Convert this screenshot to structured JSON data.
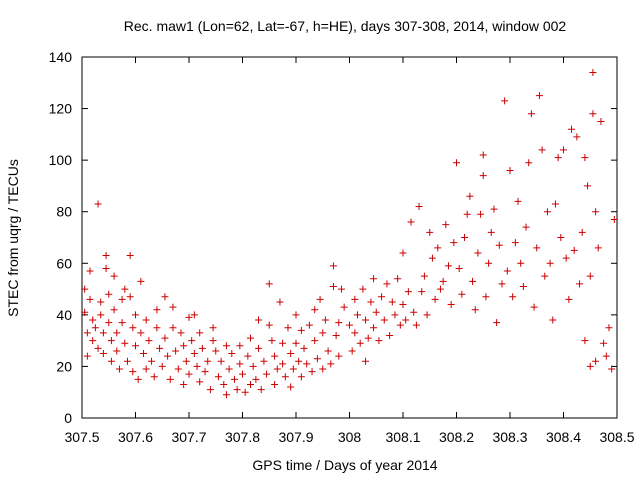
{
  "chart_data": {
    "type": "scatter",
    "title": "Rec. maw1 (Lon=62, Lat=-67, h=HE), days 307-308, 2014, window 002",
    "xlabel": "GPS time / Days of year 2014",
    "ylabel": "STEC from uqrg / TECUs",
    "xlim": [
      307.5,
      308.5
    ],
    "ylim": [
      0,
      140
    ],
    "xticks": [
      "307.5",
      "307.6",
      "307.7",
      "307.8",
      "307.9",
      "308",
      "308.1",
      "308.2",
      "308.3",
      "308.4",
      "308.5"
    ],
    "yticks": [
      "0",
      "20",
      "40",
      "60",
      "80",
      "100",
      "120",
      "140"
    ],
    "grid": false,
    "marker": "+",
    "color": "#cc0000",
    "series": [
      {
        "name": "STEC",
        "points": [
          [
            307.505,
            50
          ],
          [
            307.505,
            41
          ],
          [
            307.51,
            33
          ],
          [
            307.51,
            24
          ],
          [
            307.515,
            57
          ],
          [
            307.515,
            46
          ],
          [
            307.52,
            38
          ],
          [
            307.52,
            30
          ],
          [
            307.525,
            35
          ],
          [
            307.53,
            27
          ],
          [
            307.53,
            83
          ],
          [
            307.535,
            45
          ],
          [
            307.535,
            40
          ],
          [
            307.54,
            33
          ],
          [
            307.54,
            25
          ],
          [
            307.545,
            58
          ],
          [
            307.545,
            63
          ],
          [
            307.55,
            48
          ],
          [
            307.55,
            37
          ],
          [
            307.555,
            30
          ],
          [
            307.555,
            22
          ],
          [
            307.56,
            55
          ],
          [
            307.56,
            42
          ],
          [
            307.565,
            33
          ],
          [
            307.565,
            26
          ],
          [
            307.57,
            19
          ],
          [
            307.575,
            46
          ],
          [
            307.575,
            37
          ],
          [
            307.58,
            50
          ],
          [
            307.58,
            29
          ],
          [
            307.585,
            22
          ],
          [
            307.59,
            63
          ],
          [
            307.59,
            47
          ],
          [
            307.595,
            35
          ],
          [
            307.595,
            18
          ],
          [
            307.6,
            40
          ],
          [
            307.6,
            28
          ],
          [
            307.605,
            15
          ],
          [
            307.61,
            53
          ],
          [
            307.61,
            33
          ],
          [
            307.615,
            25
          ],
          [
            307.62,
            38
          ],
          [
            307.62,
            19
          ],
          [
            307.625,
            30
          ],
          [
            307.63,
            22
          ],
          [
            307.635,
            16
          ],
          [
            307.64,
            42
          ],
          [
            307.64,
            35
          ],
          [
            307.645,
            27
          ],
          [
            307.65,
            20
          ],
          [
            307.655,
            47
          ],
          [
            307.655,
            31
          ],
          [
            307.66,
            24
          ],
          [
            307.665,
            15
          ],
          [
            307.67,
            43
          ],
          [
            307.67,
            35
          ],
          [
            307.675,
            26
          ],
          [
            307.68,
            19
          ],
          [
            307.685,
            33
          ],
          [
            307.69,
            28
          ],
          [
            307.69,
            13
          ],
          [
            307.695,
            22
          ],
          [
            307.7,
            39
          ],
          [
            307.7,
            17
          ],
          [
            307.705,
            30
          ],
          [
            307.71,
            25
          ],
          [
            307.71,
            40
          ],
          [
            307.715,
            20
          ],
          [
            307.72,
            33
          ],
          [
            307.72,
            14
          ],
          [
            307.725,
            27
          ],
          [
            307.73,
            18
          ],
          [
            307.735,
            22
          ],
          [
            307.74,
            11
          ],
          [
            307.745,
            35
          ],
          [
            307.745,
            30
          ],
          [
            307.75,
            26
          ],
          [
            307.755,
            16
          ],
          [
            307.76,
            22
          ],
          [
            307.765,
            13
          ],
          [
            307.77,
            28
          ],
          [
            307.77,
            9
          ],
          [
            307.775,
            19
          ],
          [
            307.78,
            25
          ],
          [
            307.785,
            15
          ],
          [
            307.79,
            11
          ],
          [
            307.795,
            28
          ],
          [
            307.795,
            21
          ],
          [
            307.8,
            17
          ],
          [
            307.805,
            10
          ],
          [
            307.81,
            24
          ],
          [
            307.815,
            31
          ],
          [
            307.815,
            13
          ],
          [
            307.82,
            20
          ],
          [
            307.825,
            15
          ],
          [
            307.83,
            38
          ],
          [
            307.83,
            27
          ],
          [
            307.835,
            11
          ],
          [
            307.84,
            22
          ],
          [
            307.845,
            17
          ],
          [
            307.85,
            52
          ],
          [
            307.85,
            36
          ],
          [
            307.855,
            30
          ],
          [
            307.86,
            24
          ],
          [
            307.86,
            13
          ],
          [
            307.865,
            19
          ],
          [
            307.87,
            45
          ],
          [
            307.875,
            29
          ],
          [
            307.875,
            21
          ],
          [
            307.88,
            16
          ],
          [
            307.885,
            35
          ],
          [
            307.89,
            25
          ],
          [
            307.89,
            12
          ],
          [
            307.895,
            19
          ],
          [
            307.9,
            40
          ],
          [
            307.9,
            29
          ],
          [
            307.905,
            22
          ],
          [
            307.91,
            34
          ],
          [
            307.91,
            16
          ],
          [
            307.915,
            27
          ],
          [
            307.92,
            21
          ],
          [
            307.925,
            36
          ],
          [
            307.93,
            18
          ],
          [
            307.935,
            42
          ],
          [
            307.935,
            30
          ],
          [
            307.94,
            23
          ],
          [
            307.945,
            46
          ],
          [
            307.95,
            33
          ],
          [
            307.95,
            19
          ],
          [
            307.955,
            38
          ],
          [
            307.96,
            26
          ],
          [
            307.965,
            21
          ],
          [
            307.97,
            59
          ],
          [
            307.97,
            51
          ],
          [
            307.975,
            32
          ],
          [
            307.98,
            37
          ],
          [
            307.98,
            24
          ],
          [
            307.985,
            50
          ],
          [
            307.99,
            43
          ],
          [
            308.0,
            36
          ],
          [
            308.005,
            26
          ],
          [
            308.01,
            46
          ],
          [
            308.01,
            33
          ],
          [
            308.015,
            40
          ],
          [
            308.02,
            29
          ],
          [
            308.025,
            50
          ],
          [
            308.03,
            38
          ],
          [
            308.03,
            22
          ],
          [
            308.035,
            31
          ],
          [
            308.04,
            45
          ],
          [
            308.045,
            54
          ],
          [
            308.045,
            35
          ],
          [
            308.05,
            41
          ],
          [
            308.055,
            30
          ],
          [
            308.06,
            47
          ],
          [
            308.065,
            38
          ],
          [
            308.07,
            52
          ],
          [
            308.075,
            32
          ],
          [
            308.08,
            45
          ],
          [
            308.085,
            40
          ],
          [
            308.09,
            54
          ],
          [
            308.095,
            36
          ],
          [
            308.1,
            64
          ],
          [
            308.1,
            44
          ],
          [
            308.105,
            38
          ],
          [
            308.11,
            49
          ],
          [
            308.115,
            76
          ],
          [
            308.12,
            41
          ],
          [
            308.125,
            36
          ],
          [
            308.13,
            82
          ],
          [
            308.135,
            49
          ],
          [
            308.14,
            55
          ],
          [
            308.145,
            40
          ],
          [
            308.15,
            72
          ],
          [
            308.155,
            62
          ],
          [
            308.16,
            46
          ],
          [
            308.165,
            66
          ],
          [
            308.17,
            50
          ],
          [
            308.175,
            53
          ],
          [
            308.18,
            75
          ],
          [
            308.185,
            59
          ],
          [
            308.19,
            44
          ],
          [
            308.195,
            68
          ],
          [
            308.2,
            99
          ],
          [
            308.205,
            58
          ],
          [
            308.21,
            48
          ],
          [
            308.215,
            70
          ],
          [
            308.22,
            79
          ],
          [
            308.225,
            86
          ],
          [
            308.23,
            53
          ],
          [
            308.235,
            42
          ],
          [
            308.24,
            64
          ],
          [
            308.245,
            79
          ],
          [
            308.25,
            94
          ],
          [
            308.25,
            102
          ],
          [
            308.255,
            47
          ],
          [
            308.26,
            60
          ],
          [
            308.265,
            72
          ],
          [
            308.27,
            81
          ],
          [
            308.275,
            37
          ],
          [
            308.28,
            67
          ],
          [
            308.285,
            52
          ],
          [
            308.29,
            123
          ],
          [
            308.295,
            57
          ],
          [
            308.3,
            96
          ],
          [
            308.305,
            47
          ],
          [
            308.31,
            68
          ],
          [
            308.315,
            84
          ],
          [
            308.32,
            60
          ],
          [
            308.325,
            51
          ],
          [
            308.33,
            74
          ],
          [
            308.335,
            99
          ],
          [
            308.34,
            118
          ],
          [
            308.345,
            43
          ],
          [
            308.35,
            66
          ],
          [
            308.355,
            125
          ],
          [
            308.36,
            104
          ],
          [
            308.365,
            55
          ],
          [
            308.37,
            80
          ],
          [
            308.375,
            60
          ],
          [
            308.38,
            38
          ],
          [
            308.385,
            83
          ],
          [
            308.39,
            101
          ],
          [
            308.395,
            70
          ],
          [
            308.4,
            104
          ],
          [
            308.405,
            62
          ],
          [
            308.41,
            46
          ],
          [
            308.415,
            112
          ],
          [
            308.42,
            65
          ],
          [
            308.425,
            109
          ],
          [
            308.43,
            52
          ],
          [
            308.435,
            72
          ],
          [
            308.44,
            101
          ],
          [
            308.445,
            90
          ],
          [
            308.45,
            55
          ],
          [
            308.455,
            134
          ],
          [
            308.455,
            118
          ],
          [
            308.46,
            80
          ],
          [
            308.465,
            66
          ],
          [
            308.47,
            115
          ],
          [
            308.475,
            29
          ],
          [
            308.48,
            24
          ],
          [
            308.485,
            35
          ],
          [
            308.49,
            19
          ],
          [
            308.495,
            77
          ],
          [
            308.45,
            20
          ],
          [
            308.44,
            30
          ],
          [
            308.46,
            22
          ]
        ]
      }
    ]
  }
}
